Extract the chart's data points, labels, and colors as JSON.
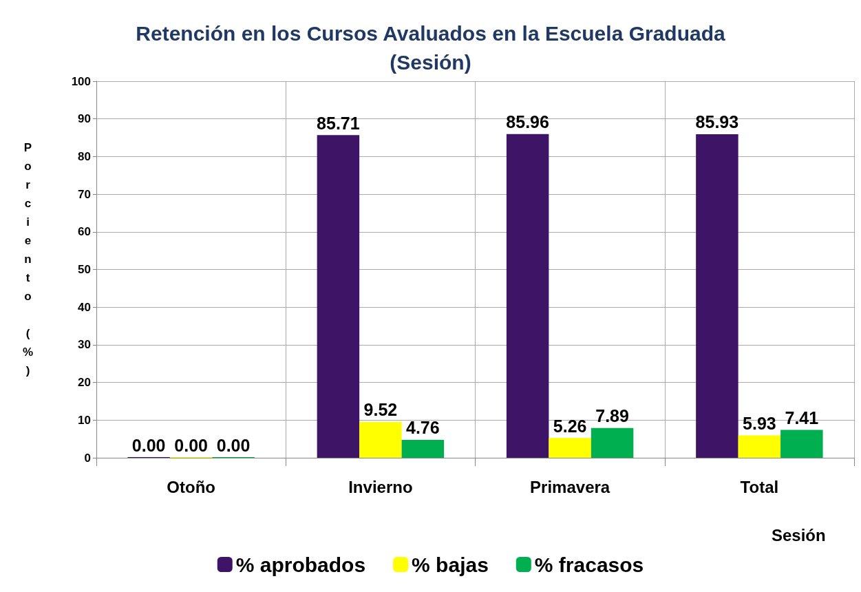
{
  "chart_data": {
    "type": "bar",
    "title": "Retención en los Cursos Avaluados en la Escuela Graduada\n(Sesión)",
    "xlabel": "Sesión",
    "ylabel": "Porciento (%)",
    "categories": [
      "Otoño",
      "Invierno",
      "Primavera",
      "Total"
    ],
    "series": [
      {
        "name": "% aprobados",
        "color": "#3d1466",
        "values": [
          0,
          85.71,
          85.96,
          85.93
        ],
        "value_labels": [
          "0.00",
          "85.71",
          "85.96",
          "85.93"
        ]
      },
      {
        "name": "% bajas",
        "color": "#ffff00",
        "values": [
          0,
          9.52,
          5.26,
          5.93
        ],
        "value_labels": [
          "0.00",
          "9.52",
          "5.26",
          "5.93"
        ]
      },
      {
        "name": "% fracasos",
        "color": "#00b050",
        "values": [
          0,
          4.76,
          7.89,
          7.41
        ],
        "value_labels": [
          "0.00",
          "4.76",
          "7.89",
          "7.41"
        ]
      }
    ],
    "ylim": [
      0,
      100
    ],
    "yticks": [
      0,
      10,
      20,
      30,
      40,
      50,
      60,
      70,
      80,
      90,
      100
    ],
    "grid": true,
    "legend": "bottom"
  }
}
